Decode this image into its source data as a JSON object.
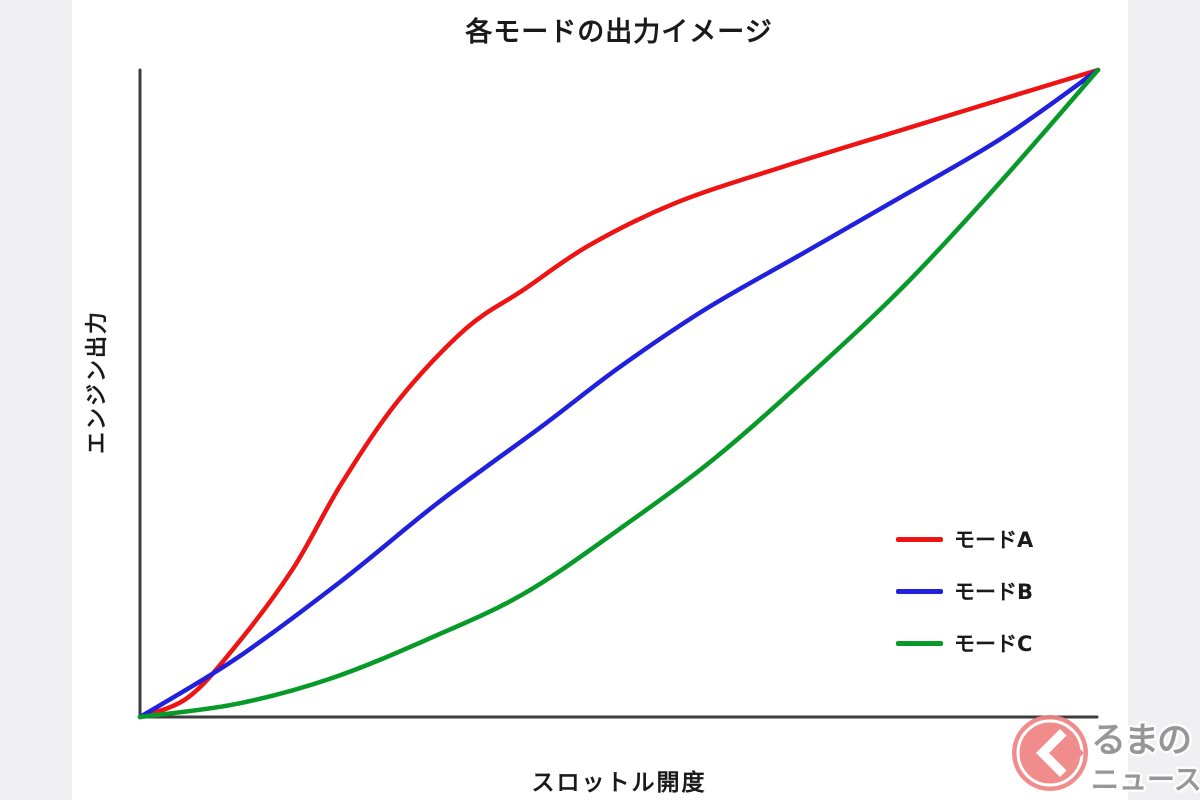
{
  "chart_data": {
    "type": "line",
    "title": "各モードの出力イメージ",
    "xlabel": "スロットル開度",
    "ylabel": "エンジン出力",
    "x_range_percent": [
      0,
      100
    ],
    "y_range_percent": [
      0,
      100
    ],
    "grid": false,
    "axis_tick_labels": [],
    "legend_position": "right-center",
    "series": [
      {
        "name": "モードA",
        "color": "#ee1414",
        "points_percent": [
          [
            0,
            0
          ],
          [
            5,
            3
          ],
          [
            10,
            11
          ],
          [
            16,
            23
          ],
          [
            21,
            36
          ],
          [
            27,
            49
          ],
          [
            34,
            60
          ],
          [
            40,
            66
          ],
          [
            47,
            73
          ],
          [
            56,
            79.5
          ],
          [
            67,
            85
          ],
          [
            79,
            90.5
          ],
          [
            90,
            95.5
          ],
          [
            100,
            100
          ]
        ]
      },
      {
        "name": "モードB",
        "color": "#2121dd",
        "points_percent": [
          [
            0,
            0
          ],
          [
            10,
            9
          ],
          [
            21,
            21
          ],
          [
            31,
            33
          ],
          [
            42,
            45
          ],
          [
            50,
            54
          ],
          [
            59,
            63
          ],
          [
            69,
            71.5
          ],
          [
            79,
            80
          ],
          [
            90,
            89.5
          ],
          [
            100,
            100
          ]
        ]
      },
      {
        "name": "モードC",
        "color": "#089a28",
        "points_percent": [
          [
            0,
            0
          ],
          [
            10,
            2
          ],
          [
            20,
            6
          ],
          [
            30,
            12
          ],
          [
            40,
            19
          ],
          [
            50,
            29
          ],
          [
            60,
            40
          ],
          [
            70,
            53
          ],
          [
            80,
            67
          ],
          [
            90,
            83
          ],
          [
            100,
            100
          ]
        ]
      }
    ]
  },
  "watermark": {
    "brand": "くるまのニュース",
    "visible_text_top": "るまの",
    "visible_text_bottom": "ニュース",
    "mark_glyph": "く",
    "circle_color": "#f08383",
    "text_color": "#8f8f8f"
  },
  "colors": {
    "background": "#f0f0f2",
    "plot_background": "#ffffff",
    "axis": "#3d3d3d",
    "text": "#1a1a1a"
  }
}
